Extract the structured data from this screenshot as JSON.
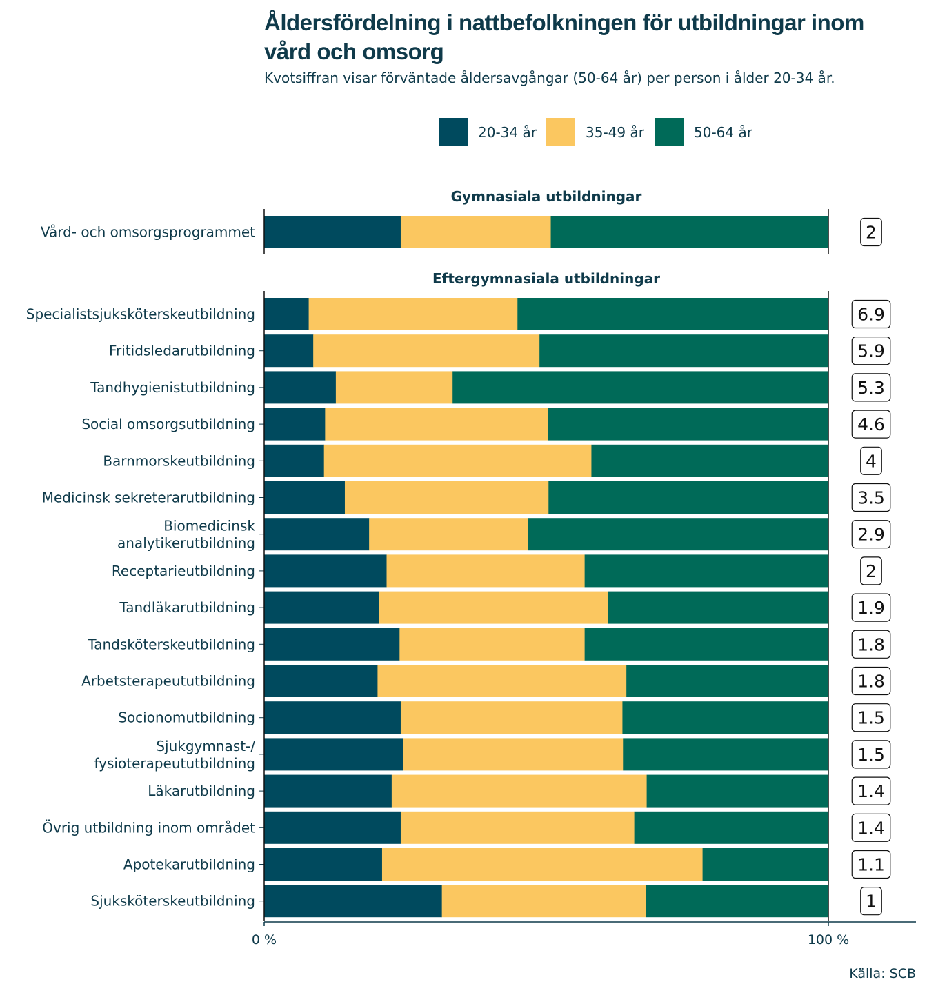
{
  "title": "Åldersfördelning i nattbefolkningen för utbildningar inom vård och omsorg",
  "subtitle": "Kvotsiffran visar förväntade åldersavgångar (50-64 år) per person i ålder 20-34 år.",
  "source": "Källa: SCB",
  "chart_data": {
    "type": "bar",
    "orientation": "horizontal",
    "stacked": "percent",
    "legend_position": "top",
    "series": [
      {
        "name": "20-34 år",
        "color": "#004a5e"
      },
      {
        "name": "35-49 år",
        "color": "#fbc760"
      },
      {
        "name": "50-64 år",
        "color": "#006a58"
      }
    ],
    "x_ticks": [
      "0 %",
      "100 %"
    ],
    "xlim": [
      0,
      100
    ],
    "panels": [
      {
        "title": "Gymnasiala utbildningar",
        "rows": [
          {
            "label": "Vård- och omsorgsprogrammet",
            "values": [
              24.2,
              26.6,
              49.2
            ],
            "ratio": "2"
          }
        ]
      },
      {
        "title": "Eftergymnasiala utbildningar",
        "rows": [
          {
            "label": "Specialistsjuksköterskeutbildning",
            "values": [
              7.9,
              37.0,
              55.1
            ],
            "ratio": "6.9"
          },
          {
            "label": "Fritidsledarutbildning",
            "values": [
              8.7,
              40.1,
              51.2
            ],
            "ratio": "5.9"
          },
          {
            "label": "Tandhygienistutbildning",
            "values": [
              12.7,
              20.7,
              66.6
            ],
            "ratio": "5.3"
          },
          {
            "label": "Social omsorgsutbildning",
            "values": [
              10.8,
              39.5,
              49.7
            ],
            "ratio": "4.6"
          },
          {
            "label": "Barnmorskeutbildning",
            "values": [
              10.6,
              47.4,
              42.0
            ],
            "ratio": "4"
          },
          {
            "label": "Medicinsk sekreterarutbildning",
            "values": [
              14.3,
              36.1,
              49.6
            ],
            "ratio": "3.5"
          },
          {
            "label": "Biomedicinsk analytikerutbildning",
            "values": [
              18.6,
              28.1,
              53.3
            ],
            "ratio": "2.9"
          },
          {
            "label": "Receptarieutbildning",
            "values": [
              21.7,
              35.1,
              43.2
            ],
            "ratio": "2"
          },
          {
            "label": "Tandläkarutbildning",
            "values": [
              20.4,
              40.6,
              39.0
            ],
            "ratio": "1.9"
          },
          {
            "label": "Tandsköterskeutbildning",
            "values": [
              24.0,
              32.8,
              43.2
            ],
            "ratio": "1.8"
          },
          {
            "label": "Arbetsterapeututbildning",
            "values": [
              20.1,
              44.1,
              35.8
            ],
            "ratio": "1.8"
          },
          {
            "label": "Socionomutbildning",
            "values": [
              24.2,
              39.3,
              36.5
            ],
            "ratio": "1.5"
          },
          {
            "label": "Sjukgymnast-/ fysioterapeututbildning",
            "values": [
              24.6,
              39.0,
              36.4
            ],
            "ratio": "1.5"
          },
          {
            "label": "Läkarutbildning",
            "values": [
              22.6,
              45.2,
              32.2
            ],
            "ratio": "1.4"
          },
          {
            "label": "Övrig utbildning inom området",
            "values": [
              24.2,
              41.4,
              34.4
            ],
            "ratio": "1.4"
          },
          {
            "label": "Apotekarutbildning",
            "values": [
              20.9,
              56.8,
              22.3
            ],
            "ratio": "1.1"
          },
          {
            "label": "Sjuksköterskeutbildning",
            "values": [
              31.5,
              36.2,
              32.3
            ],
            "ratio": "1"
          }
        ]
      }
    ]
  }
}
